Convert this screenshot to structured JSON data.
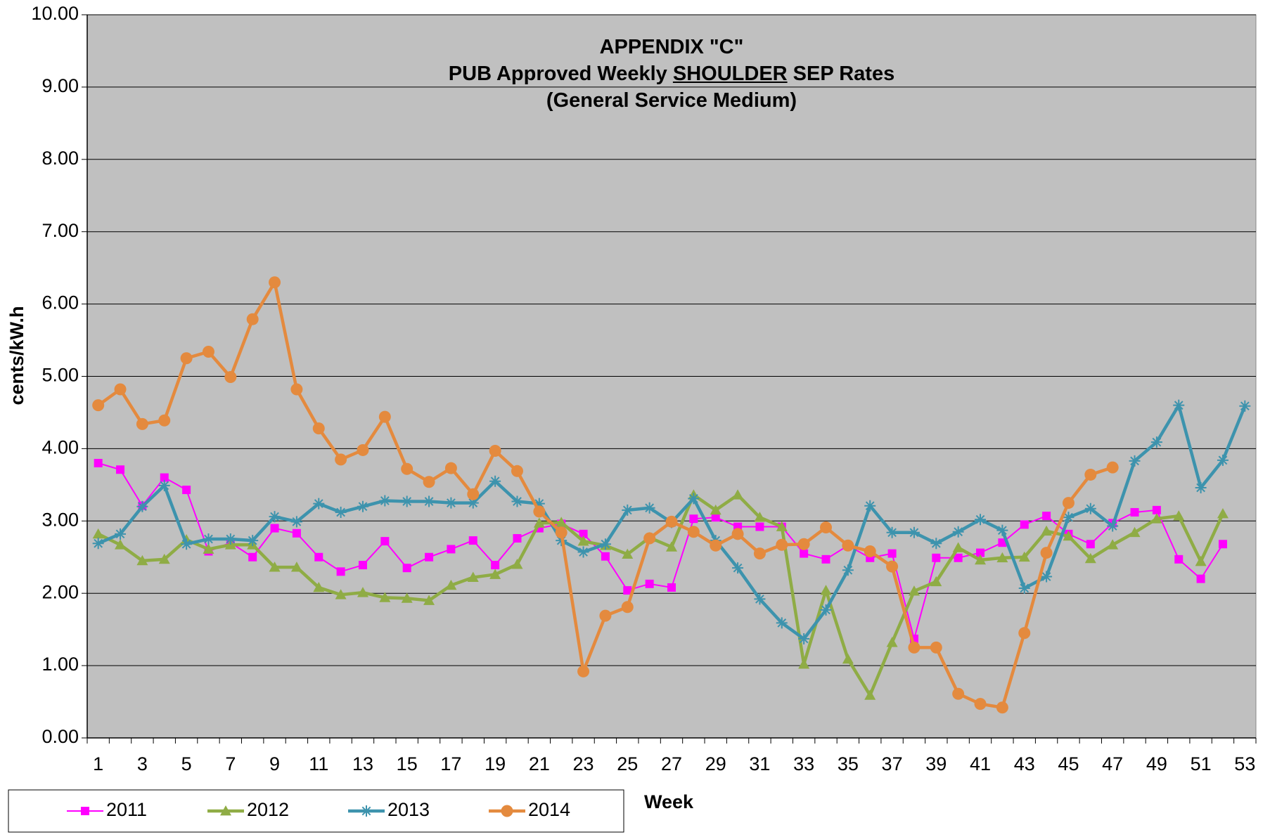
{
  "chart_data": {
    "type": "line",
    "title": {
      "line1": "APPENDIX \"C\"",
      "line2": [
        "PUB Approved Weekly",
        "SHOULDER",
        "SEP Rates"
      ],
      "line3": "(General Service Medium)"
    },
    "x_label": "Week",
    "y_label": "cents/kW.h",
    "categories": [
      "1",
      null,
      "3",
      null,
      "5",
      null,
      "7",
      null,
      "9",
      null,
      "11",
      null,
      "13",
      null,
      "15",
      null,
      "17",
      null,
      "19",
      null,
      "21",
      null,
      "23",
      null,
      "25",
      null,
      "27",
      null,
      "29",
      null,
      "31",
      null,
      "33",
      null,
      "35",
      null,
      "37",
      null,
      "39",
      null,
      "41",
      null,
      "43",
      null,
      "45",
      null,
      "47",
      null,
      "49",
      null,
      "51",
      null,
      "53"
    ],
    "series": [
      {
        "name": "2011",
        "color": "#ff00ff",
        "marker": "square",
        "values": [
          3.8,
          3.71,
          3.21,
          3.6,
          3.43,
          2.58,
          2.7,
          2.5,
          2.9,
          2.83,
          2.5,
          2.3,
          2.39,
          2.72,
          2.35,
          2.5,
          2.61,
          2.73,
          2.39,
          2.76,
          2.9,
          2.96,
          2.82,
          2.51,
          2.04,
          2.13,
          2.08,
          3.03,
          3.05,
          2.92,
          2.92,
          2.92,
          2.55,
          2.47,
          2.66,
          2.49,
          2.55,
          1.37,
          2.49,
          2.49,
          2.56,
          2.7,
          2.95,
          3.07,
          2.82,
          2.68,
          2.97,
          3.12,
          3.15,
          2.47,
          2.2,
          2.68,
          null
        ]
      },
      {
        "name": "2012",
        "color": "#8fac45",
        "marker": "triangle",
        "values": [
          2.82,
          2.67,
          2.45,
          2.47,
          2.74,
          2.61,
          2.67,
          2.67,
          2.36,
          2.36,
          2.08,
          1.98,
          2.01,
          1.94,
          1.93,
          1.9,
          2.11,
          2.22,
          2.26,
          2.4,
          2.97,
          2.98,
          2.72,
          2.66,
          2.54,
          2.77,
          2.64,
          3.36,
          3.15,
          3.36,
          3.05,
          2.92,
          1.02,
          2.04,
          1.09,
          0.59,
          1.32,
          2.03,
          2.16,
          2.63,
          2.46,
          2.49,
          2.5,
          2.86,
          2.79,
          2.48,
          2.67,
          2.84,
          3.03,
          3.07,
          2.44,
          3.1,
          null
        ]
      },
      {
        "name": "2013",
        "color": "#3d93ad",
        "marker": "star",
        "values": [
          2.69,
          2.82,
          3.2,
          3.49,
          2.68,
          2.75,
          2.75,
          2.73,
          3.06,
          2.99,
          3.24,
          3.12,
          3.2,
          3.28,
          3.27,
          3.27,
          3.25,
          3.25,
          3.55,
          3.27,
          3.24,
          2.73,
          2.57,
          2.68,
          3.15,
          3.18,
          2.98,
          3.31,
          2.73,
          2.35,
          1.92,
          1.59,
          1.37,
          1.77,
          2.32,
          3.21,
          2.84,
          2.84,
          2.69,
          2.85,
          3.02,
          2.87,
          2.07,
          2.23,
          3.05,
          3.17,
          2.93,
          3.83,
          4.09,
          4.6,
          3.46,
          3.84,
          4.59
        ]
      },
      {
        "name": "2014",
        "color": "#e48a3e",
        "marker": "circle",
        "values": [
          4.6,
          4.82,
          4.34,
          4.39,
          5.25,
          5.34,
          4.99,
          5.79,
          6.3,
          4.82,
          4.28,
          3.85,
          3.98,
          4.44,
          3.72,
          3.54,
          3.73,
          3.37,
          3.97,
          3.69,
          3.13,
          2.84,
          0.92,
          1.69,
          1.81,
          2.76,
          2.99,
          2.85,
          2.66,
          2.82,
          2.55,
          2.67,
          2.68,
          2.91,
          2.66,
          2.58,
          2.37,
          1.25,
          1.25,
          0.61,
          0.47,
          0.42,
          1.45,
          2.56,
          3.25,
          3.64,
          3.74,
          null,
          null,
          null,
          null,
          null,
          null
        ]
      }
    ],
    "ylim": [
      0,
      10
    ],
    "yticks": [
      {
        "value": 0,
        "label": "0.00"
      },
      {
        "value": 1,
        "label": "1.00"
      },
      {
        "value": 2,
        "label": "2.00"
      },
      {
        "value": 3,
        "label": "3.00"
      },
      {
        "value": 4,
        "label": "4.00"
      },
      {
        "value": 5,
        "label": "5.00"
      },
      {
        "value": 6,
        "label": "6.00"
      },
      {
        "value": 7,
        "label": "7.00"
      },
      {
        "value": 8,
        "label": "8.00"
      },
      {
        "value": 9,
        "label": "9.00"
      },
      {
        "value": 10,
        "label": "10.00"
      }
    ],
    "grid": true,
    "legend": "bottom-left"
  }
}
